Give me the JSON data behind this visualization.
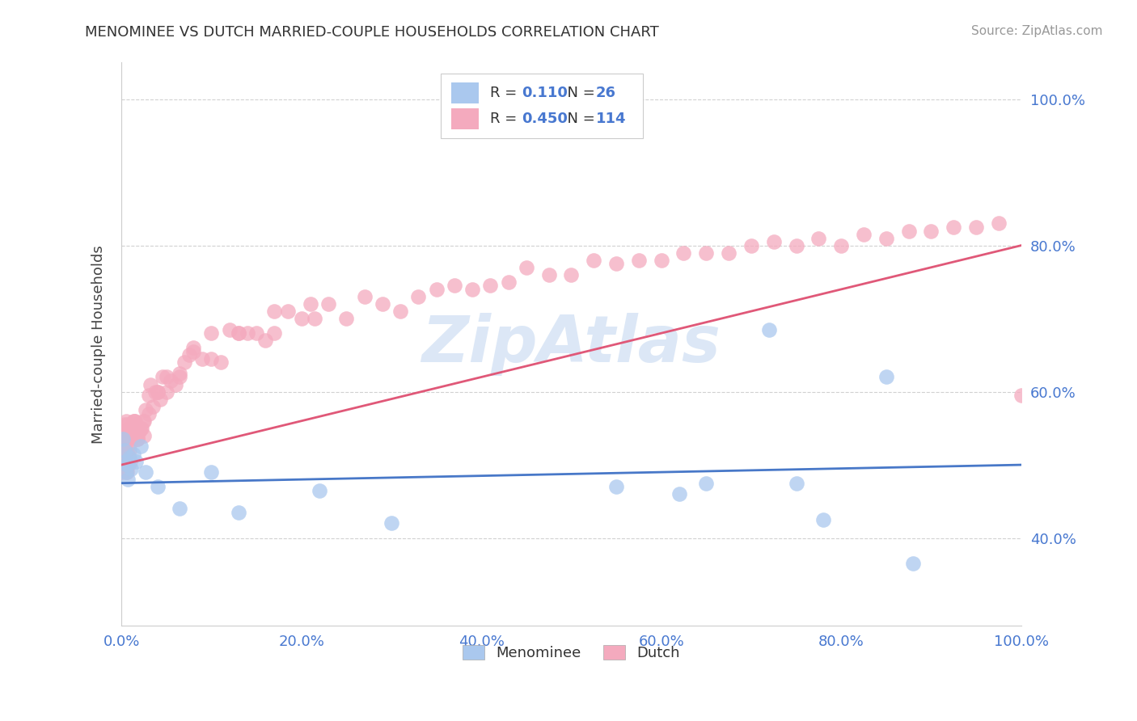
{
  "title": "MENOMINEE VS DUTCH MARRIED-COUPLE HOUSEHOLDS CORRELATION CHART",
  "source": "Source: ZipAtlas.com",
  "ylabel": "Married-couple Households",
  "xlim": [
    0,
    1.0
  ],
  "ylim": [
    0.28,
    1.05
  ],
  "yticks": [
    0.4,
    0.6,
    0.8,
    1.0
  ],
  "xticks": [
    0.0,
    0.2,
    0.4,
    0.6,
    0.8,
    1.0
  ],
  "menominee_color": "#aac8ee",
  "dutch_color": "#f4aabe",
  "menominee_line_color": "#4878c8",
  "dutch_line_color": "#e05878",
  "tick_label_color": "#4878d0",
  "title_color": "#333333",
  "source_color": "#999999",
  "background_color": "#ffffff",
  "grid_color": "#cccccc",
  "legend_text_color": "#4878d0",
  "legend_R_color": "#333333",
  "watermark_color": "#c5d8f0",
  "legend": {
    "menominee_R": "0.110",
    "menominee_N": "26",
    "dutch_R": "0.450",
    "dutch_N": "114"
  },
  "menominee_seed": 42,
  "dutch_seed": 99
}
